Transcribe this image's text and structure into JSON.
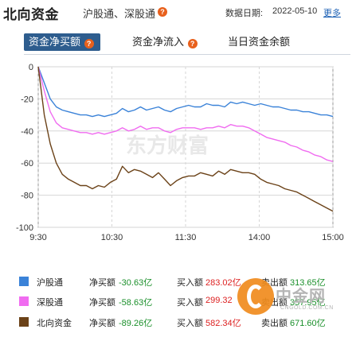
{
  "header": {
    "title": "北向资金",
    "subtitle": "沪股通、深股通",
    "date_label": "数据日期:",
    "date_value": "2022-05-10",
    "more_link": "更多"
  },
  "tabs": [
    {
      "label": "资金净买额",
      "active": true,
      "has_help": true
    },
    {
      "label": "资金净流入",
      "active": false,
      "has_help": true
    },
    {
      "label": "当日资金余额",
      "active": false,
      "has_help": false
    }
  ],
  "colors": {
    "hgt": "#3a82d8",
    "sgt": "#f06cf0",
    "north": "#6b4218",
    "tab_active_bg": "#2e5d8e",
    "help_icon": "#e8601c"
  },
  "watermark": "东方财富",
  "chart_data": {
    "type": "line",
    "x_ticks": [
      "9:30",
      "10:30",
      "11:30",
      "14:00",
      "15:00"
    ],
    "y_ticks": [
      0,
      -20,
      -40,
      -60,
      -80,
      -100
    ],
    "ylim": [
      -100,
      0
    ],
    "grid": true,
    "series": [
      {
        "name": "沪股通",
        "color": "#3a82d8",
        "values": [
          0,
          -10,
          -20,
          -25,
          -27,
          -28,
          -29,
          -30,
          -30,
          -31,
          -30,
          -31,
          -30,
          -29,
          -26,
          -28,
          -27,
          -25,
          -27,
          -26,
          -25,
          -27,
          -28,
          -26,
          -25,
          -24,
          -25,
          -25,
          -23,
          -24,
          -24,
          -25,
          -22,
          -23,
          -22,
          -23,
          -24,
          -23,
          -24,
          -25,
          -25,
          -26,
          -27,
          -27,
          -28,
          -28,
          -29,
          -30,
          -30,
          -31
        ]
      },
      {
        "name": "深股通",
        "color": "#f06cf0",
        "values": [
          0,
          -15,
          -28,
          -35,
          -38,
          -39,
          -40,
          -41,
          -41,
          -42,
          -41,
          -42,
          -41,
          -40,
          -38,
          -40,
          -39,
          -37,
          -39,
          -38,
          -38,
          -40,
          -41,
          -39,
          -38,
          -38,
          -38,
          -39,
          -38,
          -38,
          -37,
          -38,
          -36,
          -37,
          -37,
          -38,
          -40,
          -42,
          -44,
          -45,
          -46,
          -47,
          -49,
          -50,
          -52,
          -53,
          -55,
          -56,
          -58,
          -59
        ]
      },
      {
        "name": "北向资金",
        "color": "#6b4218",
        "values": [
          0,
          -30,
          -48,
          -60,
          -67,
          -70,
          -72,
          -74,
          -74,
          -76,
          -74,
          -75,
          -72,
          -70,
          -62,
          -66,
          -64,
          -65,
          -67,
          -69,
          -66,
          -70,
          -74,
          -71,
          -69,
          -68,
          -68,
          -66,
          -67,
          -68,
          -65,
          -67,
          -64,
          -65,
          -66,
          -66,
          -67,
          -70,
          -72,
          -73,
          -74,
          -76,
          -77,
          -78,
          -80,
          -82,
          -84,
          -86,
          -88,
          -90
        ]
      }
    ]
  },
  "legend": [
    {
      "name": "沪股通",
      "net_label": "净买额",
      "net": "-30.63亿",
      "buy_label": "买入额",
      "buy": "283.02亿",
      "sell_label": "卖出额",
      "sell": "313.65亿"
    },
    {
      "name": "深股通",
      "net_label": "净买额",
      "net": "-58.63亿",
      "buy_label": "买入额",
      "buy": "299.32",
      "sell_label": "卖出额",
      "sell": "357.95亿"
    },
    {
      "name": "北向资金",
      "net_label": "净买额",
      "net": "-89.26亿",
      "buy_label": "买入额",
      "buy": "582.34亿",
      "sell_label": "卖出额",
      "sell": "671.60亿"
    }
  ],
  "site_logo": {
    "name": "中金网",
    "domain": "CNGOLD.COM.CN"
  }
}
